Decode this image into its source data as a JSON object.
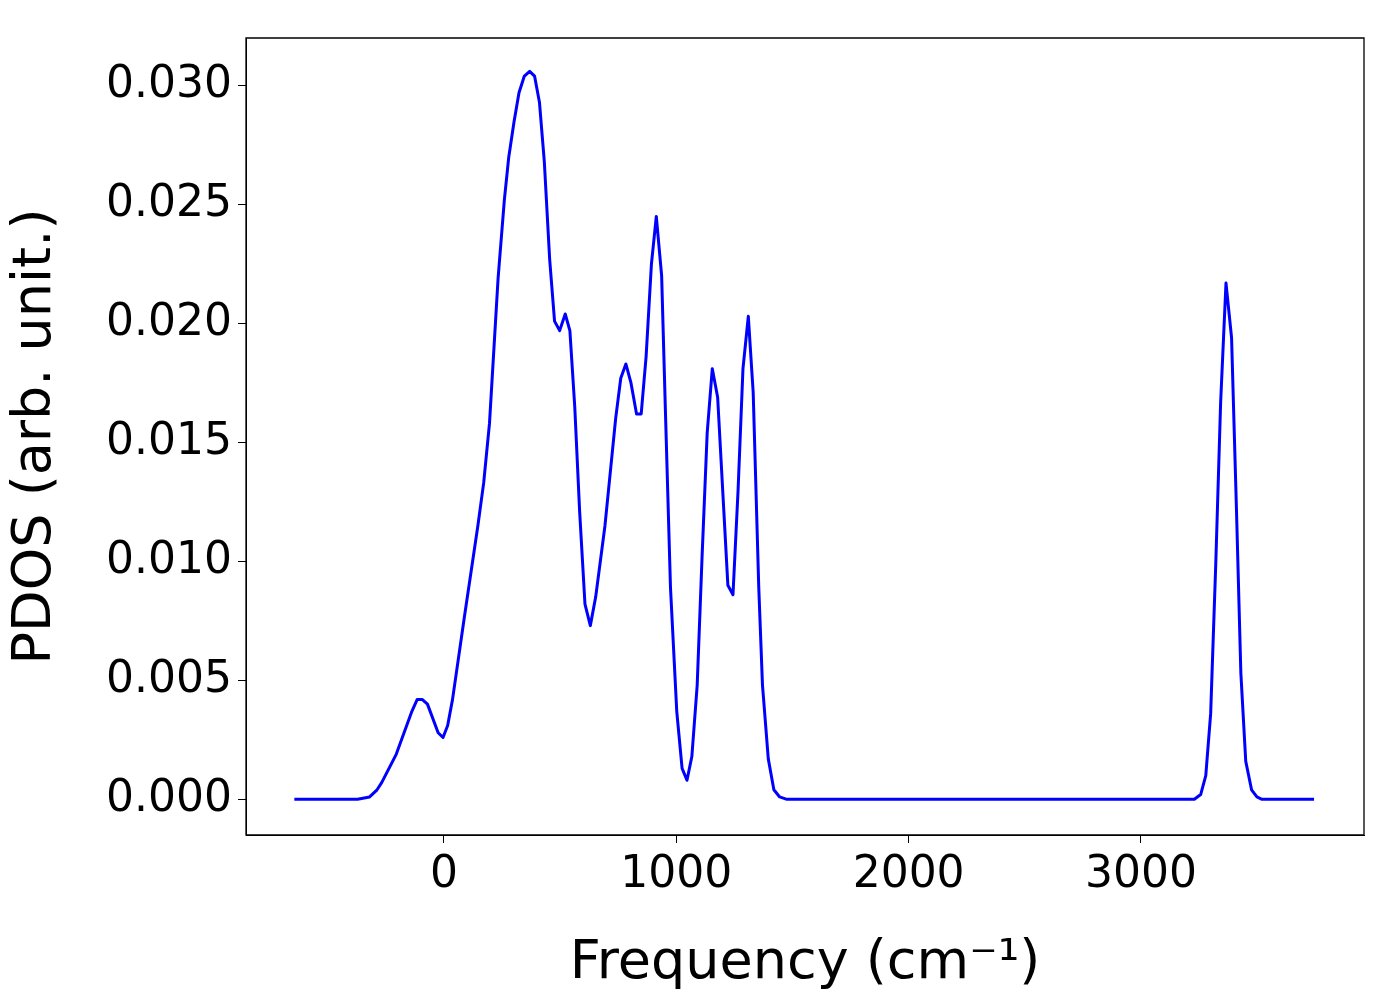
{
  "chart_data": {
    "type": "line",
    "xlabel": "Frequency (cm⁻¹)",
    "ylabel": "PDOS (arb. unit.)",
    "xlim": [
      -852,
      3960
    ],
    "ylim": [
      -0.0015,
      0.032
    ],
    "xticks": [
      0,
      1000,
      2000,
      3000
    ],
    "yticks": [
      {
        "value": 0,
        "label": "0.000"
      },
      {
        "value": 0.005,
        "label": "0.005"
      },
      {
        "value": 0.01,
        "label": "0.010"
      },
      {
        "value": 0.015,
        "label": "0.015"
      },
      {
        "value": 0.02,
        "label": "0.020"
      },
      {
        "value": 0.025,
        "label": "0.025"
      },
      {
        "value": 0.03,
        "label": "0.030"
      }
    ],
    "grid": false,
    "legend": false,
    "series": [
      {
        "color": "#0000ff",
        "x": [
          -644,
          -372,
          -320,
          -288,
          -268,
          -205,
          -138,
          -115,
          -94,
          -71,
          -25,
          -4,
          16,
          37,
          87,
          146,
          171,
          196,
          233,
          260,
          279,
          302,
          323,
          346,
          369,
          390,
          411,
          432,
          455,
          476,
          498,
          522,
          542,
          563,
          584,
          607,
          630,
          653,
          693,
          739,
          761,
          783,
          805,
          829,
          849,
          870,
          893,
          914,
          937,
          953,
          975,
          1002,
          1025,
          1046,
          1067,
          1090,
          1111,
          1133,
          1155,
          1178,
          1222,
          1244,
          1266,
          1287,
          1310,
          1331,
          1355,
          1371,
          1396,
          1420,
          1445,
          1476,
          3230,
          3257,
          3279,
          3300,
          3322,
          3343,
          3366,
          3390,
          3411,
          3430,
          3451,
          3476,
          3499,
          3521,
          3745
        ],
        "values": [
          0,
          0,
          0.0001,
          0.0004,
          0.0007,
          0.0019,
          0.0037,
          0.0042,
          0.0042,
          0.004,
          0.0028,
          0.0026,
          0.0031,
          0.0042,
          0.0076,
          0.0115,
          0.0133,
          0.0158,
          0.0219,
          0.0252,
          0.027,
          0.0285,
          0.0297,
          0.0304,
          0.0306,
          0.0304,
          0.0293,
          0.0268,
          0.0227,
          0.0201,
          0.0197,
          0.0204,
          0.0197,
          0.0165,
          0.0121,
          0.0082,
          0.0073,
          0.0085,
          0.0115,
          0.016,
          0.0177,
          0.0183,
          0.0175,
          0.0162,
          0.0162,
          0.0186,
          0.0225,
          0.0245,
          0.022,
          0.0164,
          0.0089,
          0.0037,
          0.0013,
          0.0008,
          0.0018,
          0.0048,
          0.0102,
          0.0154,
          0.0181,
          0.0169,
          0.009,
          0.0086,
          0.013,
          0.0181,
          0.0203,
          0.0171,
          0.0089,
          0.0048,
          0.0017,
          0.0004,
          0.0001,
          0,
          0,
          0.0002,
          0.001,
          0.0036,
          0.0099,
          0.0167,
          0.0217,
          0.0194,
          0.0122,
          0.0053,
          0.0016,
          0.0004,
          0.0001,
          0,
          0
        ]
      }
    ]
  }
}
